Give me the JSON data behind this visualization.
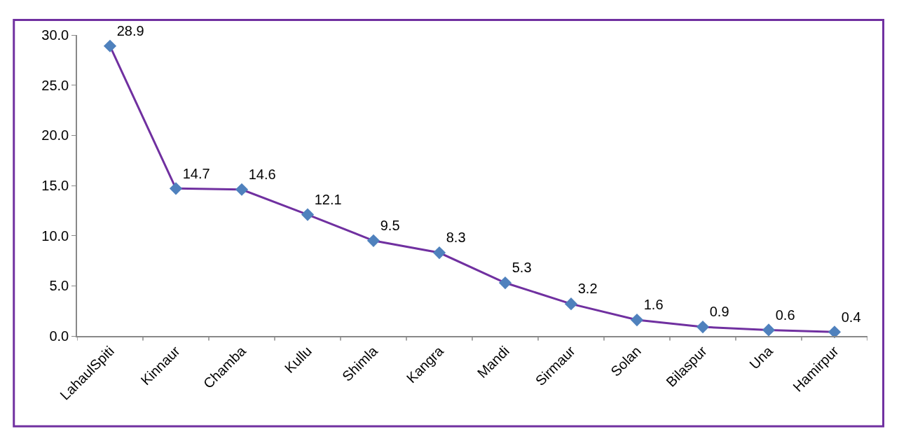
{
  "chart_data": {
    "type": "line",
    "categories": [
      "LahaulSpiti",
      "Kinnaur",
      "Chamba",
      "Kullu",
      "Shimla",
      "Kangra",
      "Mandi",
      "Sirmaur",
      "Solan",
      "Bilaspur",
      "Una",
      "Hamirpur"
    ],
    "series": [
      {
        "color": "#7030a0",
        "colors": [
          "#4f81bd",
          "#4f81bd",
          "#4f81bd",
          "#4f81bd",
          "#4f81bd",
          "#4f81bd",
          "#4f81bd",
          "#4f81bd",
          "#4f81bd",
          "#4f81bd",
          "#4f81bd",
          "#4f81bd"
        ],
        "values": [
          28.9,
          14.7,
          14.6,
          12.1,
          9.5,
          8.3,
          5.3,
          3.2,
          1.6,
          0.9,
          0.6,
          0.4
        ]
      }
    ],
    "ylim": [
      0,
      30
    ],
    "yticks": [
      {
        "value": 0,
        "label": "0.0"
      },
      {
        "value": 5,
        "label": "5.0"
      },
      {
        "value": 10,
        "label": "10.0"
      },
      {
        "value": 15,
        "label": "15.0"
      },
      {
        "value": 20,
        "label": "20.0"
      },
      {
        "value": 25,
        "label": "25.0"
      },
      {
        "value": 30,
        "label": "30.0"
      }
    ],
    "marker": "diamond",
    "line_style": "solid",
    "data_labels": true
  }
}
